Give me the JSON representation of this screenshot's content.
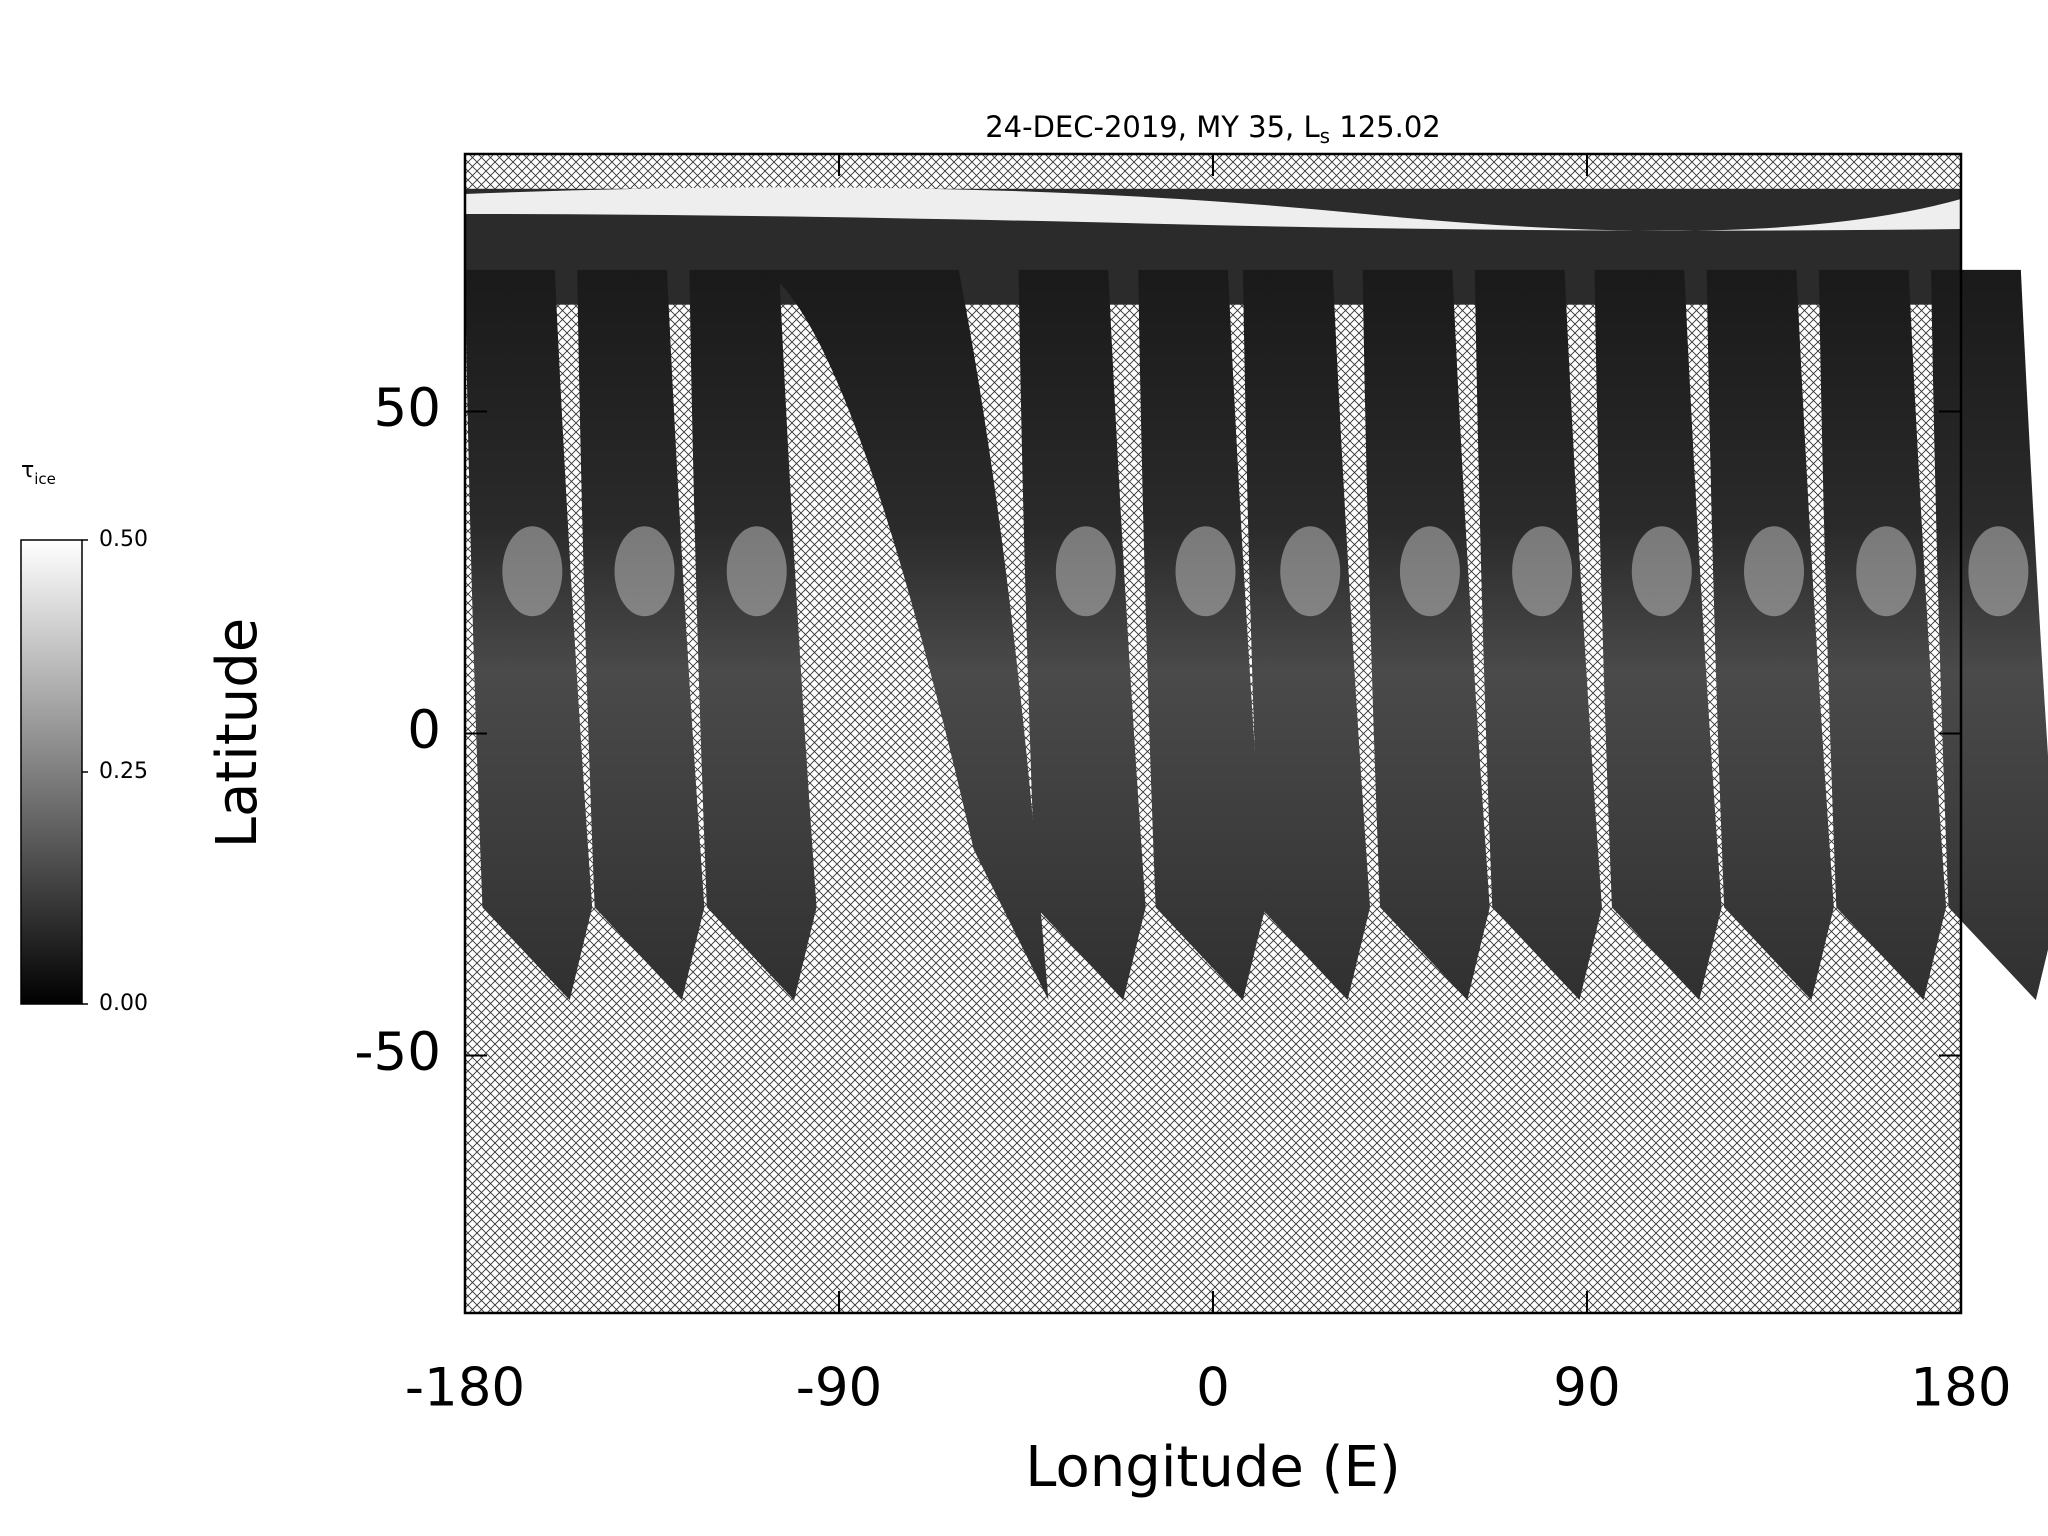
{
  "chart_data": {
    "type": "map",
    "title": {
      "before": "24-DEC-2019, MY 35,  L",
      "subscript": "s",
      "after": " 125.02"
    },
    "xlabel": "Longitude (E)",
    "ylabel": "Latitude",
    "xlim": [
      -180,
      180
    ],
    "xticks": [
      -180,
      -90,
      0,
      90,
      180
    ],
    "ylim": [
      -90,
      90
    ],
    "yticks": [
      -50,
      0,
      50
    ],
    "colorbar": {
      "label": {
        "symbol": "τ",
        "subscript": "ice"
      },
      "range": [
        0,
        0.5
      ],
      "ticks": [
        {
          "value": 0,
          "label": "0.00"
        },
        {
          "value": 0.25,
          "label": "0.25"
        },
        {
          "value": 0.5,
          "label": "0.50"
        }
      ],
      "colors": [
        "#000000",
        "#ffffff"
      ]
    }
  }
}
